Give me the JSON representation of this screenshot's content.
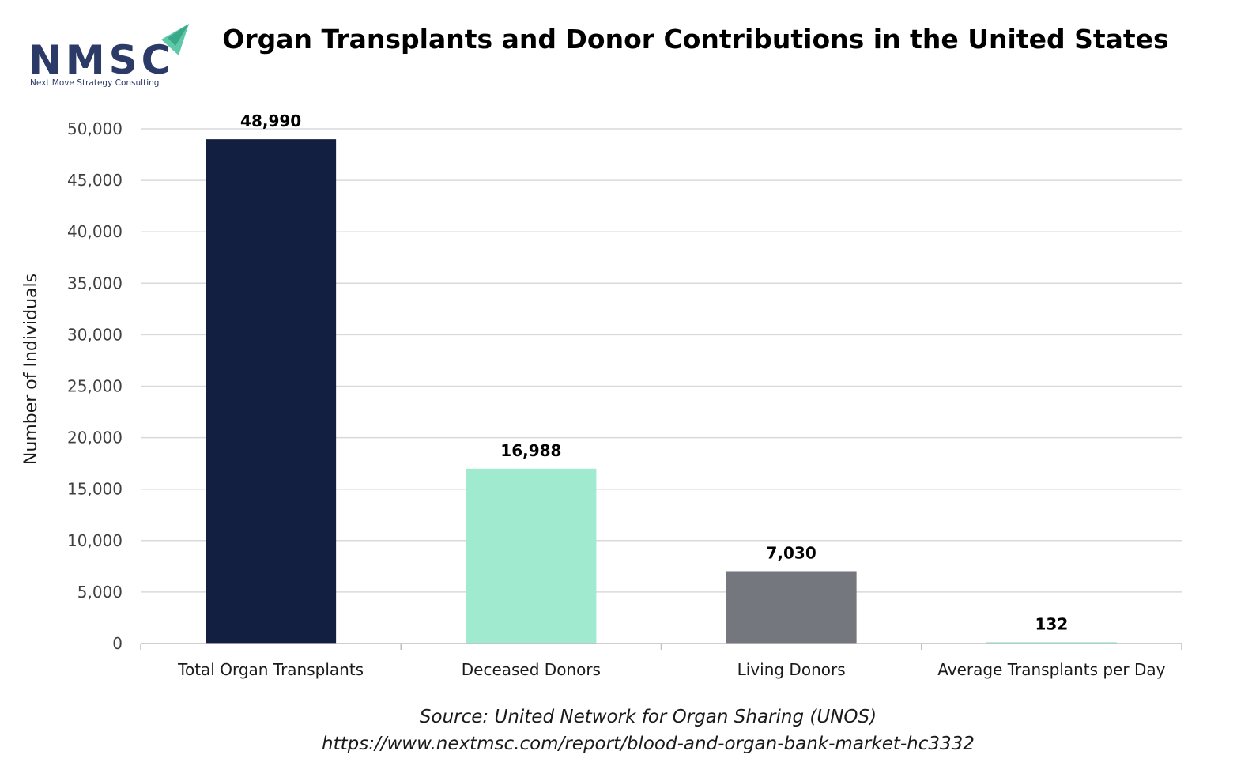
{
  "logo": {
    "text": "NMSC",
    "tagline": "Next Move Strategy Consulting",
    "brand_color": "#2b3a67",
    "accent_color": "#5ec8a8"
  },
  "chart_data": {
    "type": "bar",
    "title": "Organ Transplants and Donor Contributions in the United States",
    "ylabel": "Number of Individuals",
    "xlabel": "",
    "categories": [
      "Total Organ Transplants",
      "Deceased Donors",
      "Living Donors",
      "Average Transplants per Day"
    ],
    "values": [
      48990,
      16988,
      7030,
      132
    ],
    "data_labels": [
      "48,990",
      "16,988",
      "7,030",
      "132"
    ],
    "colors": [
      "#131f41",
      "#a0ead0",
      "#75777e",
      "#a0ead0"
    ],
    "ylim": [
      0,
      50000
    ],
    "yticks": [
      0,
      5000,
      10000,
      15000,
      20000,
      25000,
      30000,
      35000,
      40000,
      45000,
      50000
    ],
    "ytick_labels": [
      "0",
      "5,000",
      "10,000",
      "15,000",
      "20,000",
      "25,000",
      "30,000",
      "35,000",
      "40,000",
      "45,000",
      "50,000"
    ],
    "grid": true,
    "legend": "none"
  },
  "source": {
    "line1": "Source: United Network for Organ Sharing (UNOS)",
    "line2": "https://www.nextmsc.com/report/blood-and-organ-bank-market-hc3332"
  }
}
